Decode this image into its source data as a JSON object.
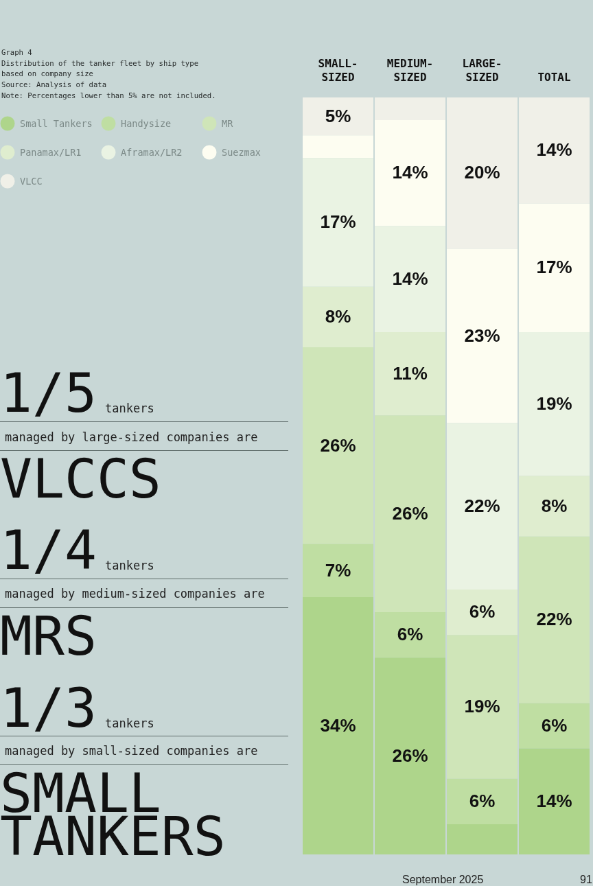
{
  "chart_data": {
    "type": "bar",
    "title": "Graph 4",
    "subtitle": "Distribution of the tanker fleet by ship type based on company size",
    "categories": [
      "SMALL-SIZED",
      "MEDIUM-SIZED",
      "LARGE-SIZED",
      "TOTAL"
    ],
    "stacked": true,
    "ylim": [
      0,
      100
    ],
    "tick_labels": "x",
    "grid": false,
    "legend": "top left",
    "series": [
      {
        "name": "Small Tankers",
        "color": "#aed58b",
        "values": [
          34,
          26,
          4,
          14
        ],
        "value_labels": [
          "34%",
          "26%",
          null,
          "14%"
        ]
      },
      {
        "name": "Handysize",
        "color": "#bfdea2",
        "values": [
          7,
          6,
          6,
          6
        ],
        "value_labels": [
          "7%",
          "6%",
          "6%",
          "6%"
        ]
      },
      {
        "name": "MR",
        "color": "#cfe5b8",
        "values": [
          26,
          26,
          19,
          22
        ],
        "value_labels": [
          "26%",
          "26%",
          "19%",
          "22%"
        ]
      },
      {
        "name": "Panamax/LR1",
        "color": "#dfedcf",
        "values": [
          8,
          11,
          6,
          8
        ],
        "value_labels": [
          "8%",
          "11%",
          "6%",
          "8%"
        ]
      },
      {
        "name": "Aframax/LR2",
        "color": "#eaf3e3",
        "values": [
          17,
          14,
          22,
          19
        ],
        "value_labels": [
          "17%",
          "14%",
          "22%",
          "19%"
        ]
      },
      {
        "name": "Suezmax",
        "color": "#fdfdf1",
        "values": [
          3,
          14,
          23,
          17
        ],
        "value_labels": [
          null,
          "14%",
          "23%",
          "17%"
        ]
      },
      {
        "name": "VLCC",
        "color": "#f0f0e8",
        "values": [
          5,
          3,
          20,
          14
        ],
        "value_labels": [
          "5%",
          null,
          "20%",
          "14%"
        ]
      }
    ],
    "annotations": [
      "Source: Analysis of data",
      "Note: Percentages lower than 5% are not included.",
      "1/5",
      "tankers",
      "managed by large-sized companies are",
      "VLCCS",
      "1/4",
      "tankers",
      "managed by medium-sized companies are",
      "MRS",
      "1/3",
      "tankers",
      "managed by small-sized companies are",
      "SMALL TANKERS",
      "September 2025",
      "91"
    ]
  }
}
